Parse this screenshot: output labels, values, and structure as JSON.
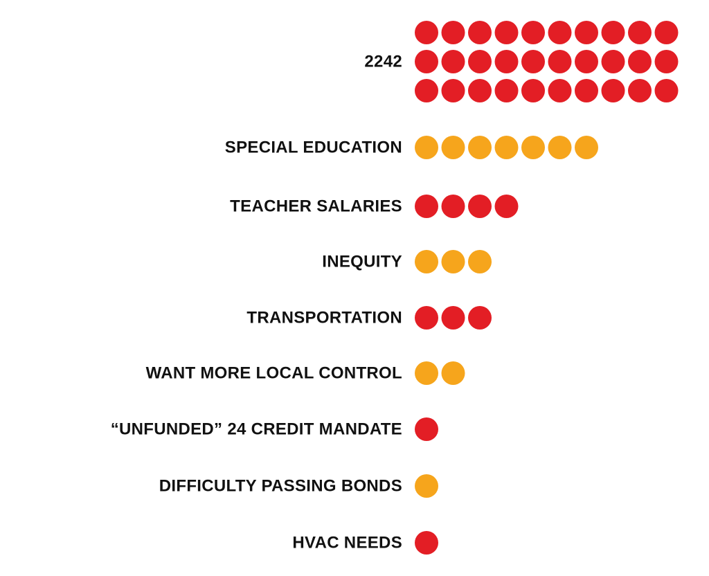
{
  "chart_data": {
    "type": "pictograph",
    "title": "",
    "xlabel": "",
    "ylabel": "",
    "grid": false,
    "legend": "none",
    "categories": [
      "2242",
      "SPECIAL EDUCATION",
      "TEACHER SALARIES",
      "INEQUITY",
      "TRANSPORTATION",
      "WANT MORE LOCAL CONTROL",
      "“UNFUNDED” 24 CREDIT MANDATE",
      "DIFFICULTY PASSING BONDS",
      "HVAC NEEDS"
    ],
    "values": [
      30,
      7,
      4,
      3,
      3,
      2,
      1,
      1,
      1
    ],
    "dot_colors": [
      "#e31e25",
      "#f6a51c",
      "#e31e25",
      "#f6a51c",
      "#e31e25",
      "#f6a51c",
      "#e31e25",
      "#f6a51c",
      "#e31e25"
    ],
    "dots_per_row": 10
  },
  "colors": {
    "red": "#e31e25",
    "orange": "#f6a51c",
    "label_text": "#111111",
    "background": "#ffffff"
  }
}
